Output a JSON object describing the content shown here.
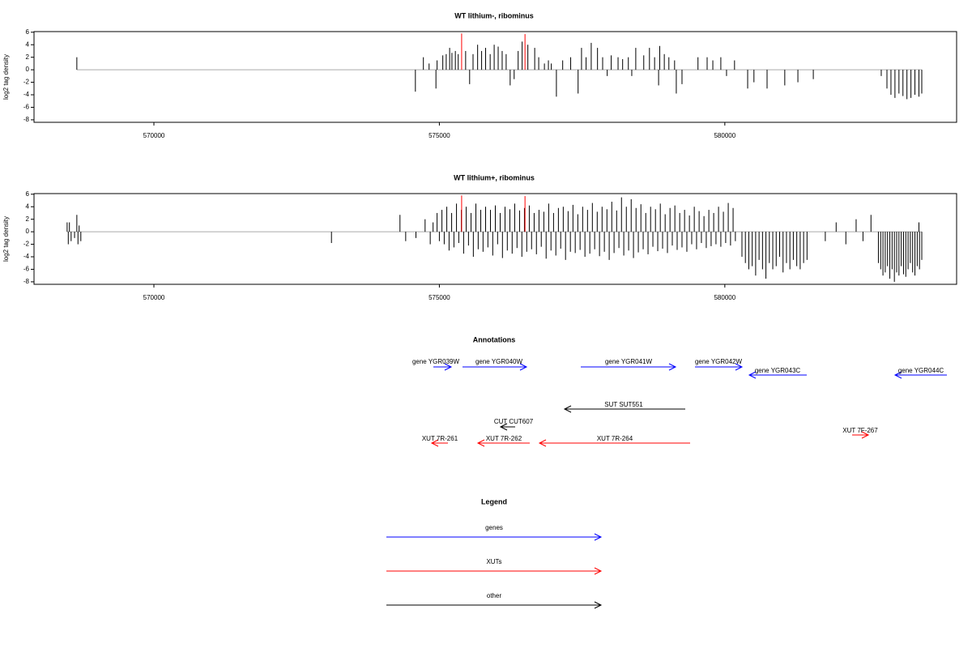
{
  "chart_data": [
    {
      "type": "bar",
      "title": "WT lithium-, ribominus",
      "y_label": "log2 tag density",
      "xlim": [
        567900,
        584060
      ],
      "ylim": [
        -8.4,
        6.1
      ],
      "xticks": [
        570000,
        575000,
        580000
      ],
      "yticks": [
        6,
        4,
        2,
        0,
        -2,
        -4,
        -6,
        -8
      ],
      "baseline_color": "#aaaaaa",
      "series": [
        {
          "color": "#000000",
          "x": [
            568650,
            574580,
            574720,
            574820,
            574940,
            574960,
            575060,
            575120,
            575180,
            575220,
            575280,
            575330,
            575460,
            575530,
            575590,
            575670,
            575740,
            575810,
            575890,
            575960,
            576030,
            576100,
            576170,
            576240,
            576310,
            576380,
            576450,
            576550,
            576670,
            576740,
            576840,
            576910,
            576960,
            577050,
            577160,
            577300,
            577430,
            577490,
            577570,
            577660,
            577770,
            577860,
            577940,
            578010,
            578130,
            578210,
            578310,
            578370,
            578440,
            578580,
            578680,
            578770,
            578840,
            578860,
            578940,
            579020,
            579120,
            579150,
            579250,
            579530,
            579690,
            579790,
            579930,
            580030,
            580170,
            580400,
            580510,
            580740,
            581050,
            581280,
            581550,
            582740,
            582840,
            582910,
            582980,
            583050,
            583120,
            583190,
            583260,
            583330,
            583400,
            583450
          ],
          "values": [
            2,
            -3.5,
            2,
            1,
            -3,
            1.5,
            2.3,
            2.5,
            3.5,
            2.7,
            3,
            2.5,
            3,
            -2.3,
            2.5,
            4,
            3,
            3.5,
            2.5,
            4,
            3.7,
            3,
            2.5,
            -2.5,
            -1.5,
            3,
            4.5,
            4,
            3.5,
            2,
            1,
            1.5,
            1,
            -4.3,
            1.5,
            2,
            -3.8,
            3.5,
            2,
            4.3,
            3.5,
            2,
            -1,
            2.3,
            2,
            1.7,
            2,
            -1,
            3.5,
            2.3,
            3.5,
            2,
            -2.5,
            3.8,
            2.5,
            2,
            1.5,
            -3.8,
            -2.3,
            2,
            2,
            1.5,
            2,
            -1,
            1.5,
            -3,
            -2,
            -3,
            -2.5,
            -2,
            -1.5,
            -1,
            -3,
            -4,
            -4.5,
            -3.8,
            -4.2,
            -4.7,
            -4.5,
            -4,
            -4.3,
            -3.8
          ]
        },
        {
          "color": "#ff0000",
          "x": [
            575390,
            576500
          ],
          "values": [
            5.8,
            5.7
          ]
        }
      ]
    },
    {
      "type": "bar",
      "title": "WT lithium+, ribominus",
      "y_label": "log2 tag density",
      "xlim": [
        567900,
        584060
      ],
      "ylim": [
        -8.4,
        6.1
      ],
      "xticks": [
        570000,
        575000,
        580000
      ],
      "yticks": [
        6,
        4,
        2,
        0,
        -2,
        -4,
        -6,
        -8
      ],
      "baseline_color": "#aaaaaa",
      "series": [
        {
          "color": "#000000",
          "x": [
            568480,
            568500,
            568520,
            568550,
            568610,
            568650,
            568670,
            568690,
            568720,
            573110,
            574310,
            574410,
            574590,
            574750,
            574840,
            574890
          ],
          "values": [
            1.5,
            -2,
            1.5,
            -1.5,
            -1,
            2.7,
            -2,
            1,
            -1.5,
            -1.8,
            2.7,
            -1.5,
            -1,
            2,
            -2,
            1.5
          ]
        },
        {
          "color": "#000000",
          "x": [
            574960,
            575045,
            575130,
            575215,
            575300,
            575385,
            575470,
            575555,
            575640,
            575725,
            575810,
            575895,
            575980,
            576065,
            576150,
            576235,
            576320,
            576405,
            576490,
            576575,
            576660,
            576745,
            576830,
            576915,
            577000,
            577085,
            577170,
            577255,
            577340,
            577425,
            577510,
            577595,
            577680,
            577765,
            577850,
            577935,
            578020,
            578105,
            578190,
            578275,
            578360,
            578445,
            578530,
            578615,
            578700,
            578785,
            578870,
            578955,
            579040,
            579125,
            579210,
            579295,
            579380,
            579465,
            579550,
            579635,
            579720,
            579805,
            579890,
            579975,
            580060,
            580145
          ],
          "values": [
            3,
            3.5,
            4,
            3,
            4.5,
            3.5,
            4,
            3,
            4.5,
            3.5,
            4,
            3.5,
            4.2,
            3,
            4,
            3.6,
            4.5,
            3.4,
            3.8,
            4.2,
            3,
            3.5,
            3.2,
            4.5,
            3,
            3.8,
            4,
            3.3,
            4.3,
            2.8,
            4,
            3.5,
            4.6,
            3.2,
            4,
            3.6,
            4.8,
            3.4,
            5.5,
            4,
            5.2,
            3.8,
            4.4,
            3,
            4,
            3.6,
            4.5,
            2.8,
            3.8,
            4.2,
            3,
            3.5,
            2.6,
            4,
            3.3,
            2.5,
            3.5,
            3,
            4,
            3.2,
            4.6,
            3.8
          ]
        },
        {
          "color": "#000000",
          "x": [
            575000,
            575085,
            575170,
            575255,
            575340,
            575425,
            575510,
            575595,
            575680,
            575765,
            575850,
            575935,
            576020,
            576105,
            576190,
            576275,
            576360,
            576445,
            576530,
            576615,
            576700,
            576785,
            576870,
            576955,
            577040,
            577125,
            577210,
            577295,
            577380,
            577465,
            577550,
            577635,
            577720,
            577805,
            577890,
            577975,
            578060,
            578145,
            578230,
            578315,
            578400,
            578485,
            578570,
            578655,
            578740,
            578825,
            578910,
            578995,
            579080,
            579165,
            579250,
            579335,
            579420,
            579505,
            579590,
            579675,
            579760,
            579845,
            579930,
            580015,
            580100,
            580185
          ],
          "values": [
            -1.5,
            -2,
            -3,
            -2.5,
            -1.8,
            -3.5,
            -2.2,
            -4,
            -2.8,
            -3.2,
            -2.5,
            -3.8,
            -2,
            -4.2,
            -3,
            -3.5,
            -2.6,
            -4,
            -3.2,
            -2.8,
            -3.6,
            -2.4,
            -4.3,
            -3,
            -3.8,
            -2.7,
            -4.5,
            -3.2,
            -3.4,
            -2.9,
            -4,
            -3.5,
            -2.8,
            -3.9,
            -3.2,
            -4.5,
            -3.4,
            -2.6,
            -3.8,
            -3,
            -4.2,
            -3.3,
            -2.8,
            -3.6,
            -2.4,
            -3.1,
            -2.7,
            -3.4,
            -2.2,
            -2.9,
            -2.5,
            -3.2,
            -2,
            -2.8,
            -1.8,
            -2.6,
            -2.3,
            -2,
            -2.4,
            -1.8,
            -2.2,
            -1.5
          ]
        },
        {
          "color": "#000000",
          "x": [
            580300,
            580360,
            580420,
            580480,
            580540,
            580600,
            580660,
            580720,
            580780,
            580840,
            580900,
            580960,
            581020,
            581080,
            581140,
            581200,
            581260,
            581320,
            581380,
            581440
          ],
          "values": [
            -4,
            -5,
            -6,
            -5.5,
            -7,
            -4.5,
            -6,
            -7.5,
            -5,
            -6,
            -5.5,
            -4,
            -6.5,
            -5,
            -6,
            -4.5,
            -5.5,
            -6,
            -5,
            -4.5
          ]
        },
        {
          "color": "#000000",
          "x": [
            581760,
            581950,
            582120,
            582300,
            582420,
            582560,
            583400
          ],
          "values": [
            -1.5,
            1.5,
            -2,
            2,
            -1.5,
            2.7,
            1.5
          ]
        },
        {
          "color": "#000000",
          "x": [
            582690,
            582730,
            582770,
            582810,
            582850,
            582890,
            582930,
            582970,
            583010,
            583050,
            583090,
            583130,
            583170,
            583210,
            583250,
            583290,
            583330,
            583370,
            583410,
            583450
          ],
          "values": [
            -5,
            -6,
            -7,
            -6.5,
            -5.5,
            -7.5,
            -6,
            -8,
            -6.5,
            -7,
            -5.5,
            -6.8,
            -7.2,
            -6,
            -5,
            -6.5,
            -7,
            -5.5,
            -6,
            -4.5
          ]
        },
        {
          "color": "#ff0000",
          "x": [
            575390,
            576500
          ],
          "values": [
            5.8,
            5.7
          ]
        }
      ]
    }
  ],
  "annotations": {
    "title": "Annotations",
    "items": [
      {
        "label": "gene YGR039W",
        "color": "#0000ff"
      },
      {
        "label": "gene YGR040W",
        "color": "#0000ff"
      },
      {
        "label": "gene YGR041W",
        "color": "#0000ff"
      },
      {
        "label": "gene YGR042W",
        "color": "#0000ff"
      },
      {
        "label": "gene YGR043C",
        "color": "#0000ff"
      },
      {
        "label": "gene YGR044C",
        "color": "#0000ff"
      },
      {
        "label": "SUT SUT551",
        "color": "#000000"
      },
      {
        "label": "CUT CUT607",
        "color": "#000000"
      },
      {
        "label": "XUT 7R-261",
        "color": "#ff0000"
      },
      {
        "label": "XUT 7R-262",
        "color": "#ff0000"
      },
      {
        "label": "XUT 7R-264",
        "color": "#ff0000"
      },
      {
        "label": "XUT 7F-267",
        "color": "#ff0000"
      }
    ]
  },
  "legend": {
    "title": "Legend",
    "items": [
      {
        "label": "genes",
        "color": "#0000ff"
      },
      {
        "label": "XUTs",
        "color": "#ff0000"
      },
      {
        "label": "other",
        "color": "#000000"
      }
    ]
  }
}
